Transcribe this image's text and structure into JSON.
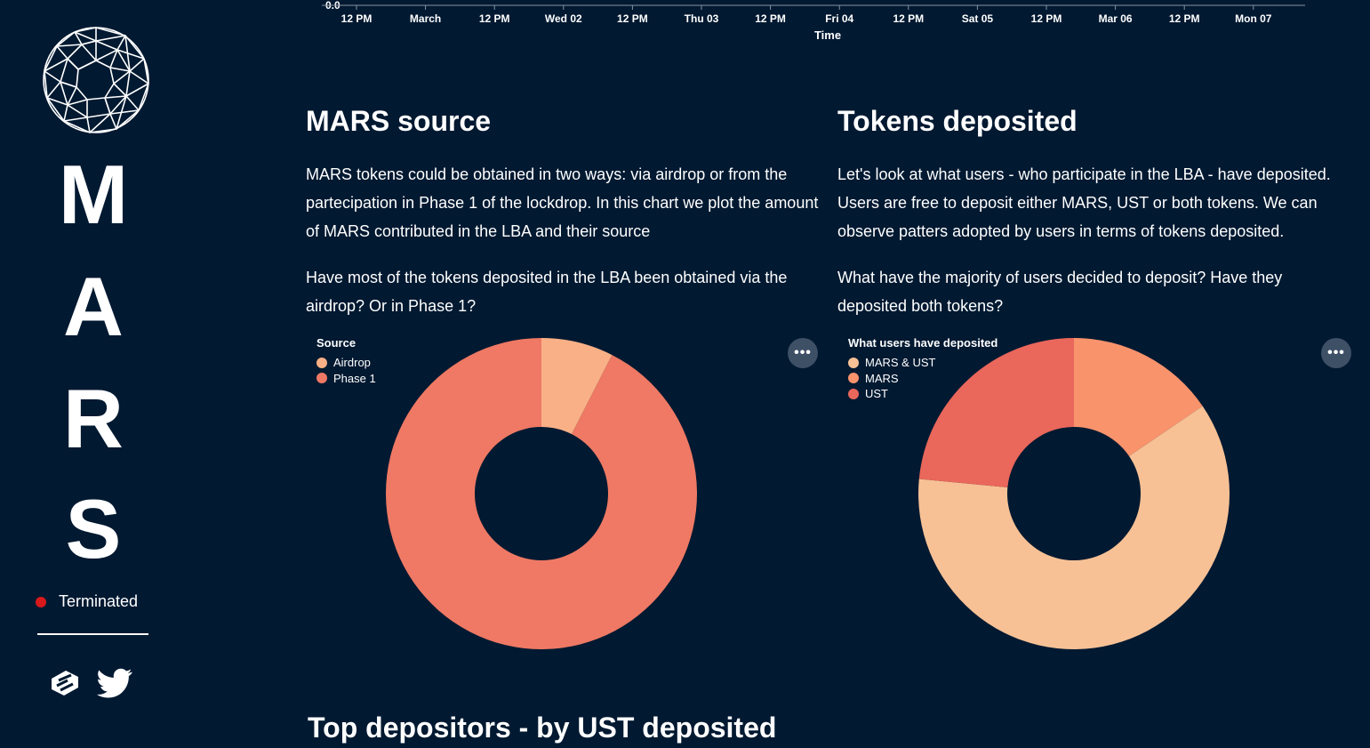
{
  "sidebar": {
    "letters": [
      "M",
      "A",
      "R",
      "S"
    ],
    "status_label": "Terminated",
    "status_color": "#d7191c",
    "icons": [
      "gitbook-icon",
      "twitter-icon"
    ]
  },
  "timeline": {
    "y_tick": "0.0",
    "ticks": [
      "12 PM",
      "March",
      "12 PM",
      "Wed 02",
      "12 PM",
      "Thu 03",
      "12 PM",
      "Fri 04",
      "12 PM",
      "Sat 05",
      "12 PM",
      "Mar 06",
      "12 PM",
      "Mon 07"
    ],
    "xlabel": "Time"
  },
  "mars_source": {
    "title": "MARS source",
    "para1": "MARS tokens could be obtained in two ways: via airdrop or from the partecipation in Phase 1 of the lockdrop. In this chart we plot the amount of MARS contributed in the LBA and their source",
    "para2": "Have most of the tokens deposited in the LBA been obtained via the airdrop? Or in Phase 1?"
  },
  "tokens_deposited": {
    "title": "Tokens deposited",
    "para1": "Let's look at what users - who participate in the LBA - have deposited. Users are free to deposit either MARS, UST or both tokens. We can observe patters adopted by users in terms of tokens deposited.",
    "para2": "What have the majority of users decided to deposit? Have they deposited both tokens?"
  },
  "more_button_label": "•••",
  "bottom": {
    "title": "Top depositors - by UST deposited"
  },
  "chart_data": [
    {
      "type": "pie",
      "donut": true,
      "legend_title": "Source",
      "legend_position": "top-left",
      "categories": [
        "Airdrop",
        "Phase 1"
      ],
      "values": [
        7.5,
        92.5
      ],
      "colors": [
        "#f9b086",
        "#ef7964"
      ]
    },
    {
      "type": "pie",
      "donut": true,
      "legend_title": "What users have deposited",
      "legend_position": "top-left",
      "categories": [
        "MARS & UST",
        "MARS",
        "UST"
      ],
      "values": [
        61,
        15.5,
        23.5
      ],
      "slice_order": [
        "MARS",
        "MARS & UST",
        "UST"
      ],
      "colors": [
        "#f7c195",
        "#f8936c",
        "#ea675b"
      ]
    }
  ]
}
